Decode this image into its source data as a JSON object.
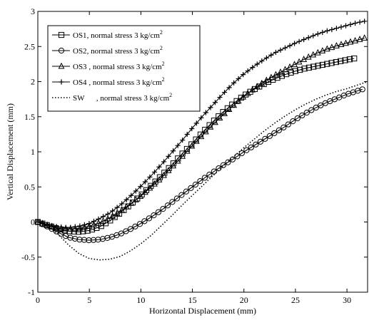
{
  "chart_data": {
    "type": "line",
    "title": "",
    "xlabel": "Horizontal Displacement (mm)",
    "ylabel": "Vertical Displacement (mm)",
    "xlim": [
      0,
      32
    ],
    "ylim": [
      -1,
      3
    ],
    "xticks": [
      0,
      5,
      10,
      15,
      20,
      25,
      30
    ],
    "yticks": [
      -1,
      -0.5,
      0,
      0.5,
      1,
      1.5,
      2,
      2.5,
      3
    ],
    "ytick_labels": [
      "-1",
      "-0.5",
      "0",
      "0.5",
      "1",
      "1.5",
      "2",
      "2.5",
      "3"
    ],
    "grid": false,
    "legend_position": "top-left",
    "series": [
      {
        "name": "OS1",
        "suffix": ", normal stress 3 kg/cm",
        "superscript": "2",
        "marker": "square",
        "line_style": "solid",
        "x": [
          0,
          1,
          2,
          3,
          4,
          5,
          6,
          7,
          8,
          9,
          10,
          11,
          12,
          13,
          14,
          15,
          16,
          17,
          18,
          19,
          20,
          21,
          22,
          23,
          24,
          25,
          26,
          27,
          28,
          29,
          30,
          30.7
        ],
        "y": [
          0,
          -0.05,
          -0.1,
          -0.13,
          -0.14,
          -0.12,
          -0.07,
          0.02,
          0.13,
          0.25,
          0.38,
          0.52,
          0.66,
          0.81,
          0.97,
          1.12,
          1.28,
          1.43,
          1.57,
          1.69,
          1.8,
          1.89,
          1.97,
          2.04,
          2.1,
          2.15,
          2.19,
          2.22,
          2.25,
          2.28,
          2.31,
          2.33
        ]
      },
      {
        "name": "OS2",
        "suffix": ", normal stress 3 kg/cm",
        "superscript": "2",
        "marker": "circle",
        "line_style": "solid",
        "x": [
          0,
          1,
          2,
          3,
          4,
          5,
          6,
          7,
          8,
          9,
          10,
          11,
          12,
          13,
          14,
          15,
          16,
          17,
          18,
          19,
          20,
          21,
          22,
          23,
          24,
          25,
          26,
          27,
          28,
          29,
          30,
          31.5
        ],
        "y": [
          0,
          -0.07,
          -0.15,
          -0.22,
          -0.25,
          -0.26,
          -0.25,
          -0.22,
          -0.17,
          -0.1,
          -0.02,
          0.07,
          0.17,
          0.28,
          0.39,
          0.5,
          0.61,
          0.71,
          0.81,
          0.9,
          1.0,
          1.09,
          1.18,
          1.27,
          1.36,
          1.46,
          1.55,
          1.63,
          1.7,
          1.76,
          1.82,
          1.89
        ]
      },
      {
        "name": "OS3",
        "suffix": " , normal stress 3 kg/cm",
        "superscript": "2",
        "marker": "triangle",
        "line_style": "solid",
        "x": [
          0,
          1,
          2,
          3,
          4,
          5,
          6,
          7,
          8,
          9,
          10,
          11,
          12,
          13,
          14,
          15,
          16,
          17,
          18,
          19,
          20,
          21,
          22,
          23,
          24,
          25,
          26,
          27,
          28,
          29,
          30,
          31,
          31.7
        ],
        "y": [
          0,
          -0.05,
          -0.09,
          -0.1,
          -0.09,
          -0.06,
          -0.01,
          0.06,
          0.15,
          0.26,
          0.37,
          0.5,
          0.63,
          0.78,
          0.93,
          1.09,
          1.24,
          1.39,
          1.53,
          1.66,
          1.79,
          1.9,
          2.0,
          2.09,
          2.17,
          2.25,
          2.33,
          2.4,
          2.46,
          2.51,
          2.55,
          2.59,
          2.62
        ]
      },
      {
        "name": "OS4",
        "suffix": " , normal stress 3 kg/cm",
        "superscript": "2",
        "marker": "plus",
        "line_style": "solid",
        "x": [
          0,
          1,
          2,
          3,
          4,
          5,
          6,
          7,
          8,
          9,
          10,
          11,
          12,
          13,
          14,
          15,
          16,
          17,
          18,
          19,
          20,
          21,
          22,
          23,
          24,
          25,
          26,
          27,
          28,
          29,
          30,
          31,
          31.7
        ],
        "y": [
          0,
          -0.04,
          -0.07,
          -0.08,
          -0.06,
          -0.02,
          0.05,
          0.13,
          0.24,
          0.37,
          0.51,
          0.66,
          0.82,
          0.99,
          1.16,
          1.34,
          1.51,
          1.67,
          1.83,
          1.98,
          2.11,
          2.22,
          2.32,
          2.41,
          2.48,
          2.55,
          2.61,
          2.67,
          2.72,
          2.76,
          2.8,
          2.84,
          2.86
        ]
      },
      {
        "name": "SW",
        "suffix": "      , normal stress 3 kg/cm",
        "superscript": "2",
        "marker": "none",
        "line_style": "dotted",
        "x": [
          0,
          1,
          2,
          3,
          4,
          5,
          6,
          7,
          8,
          9,
          10,
          11,
          12,
          13,
          14,
          15,
          16,
          17,
          18,
          19,
          20,
          21,
          22,
          23,
          24,
          25,
          26,
          27,
          28,
          29,
          30,
          31,
          32
        ],
        "y": [
          0,
          -0.06,
          -0.18,
          -0.33,
          -0.45,
          -0.52,
          -0.54,
          -0.53,
          -0.49,
          -0.41,
          -0.31,
          -0.19,
          -0.05,
          0.09,
          0.24,
          0.38,
          0.52,
          0.66,
          0.8,
          0.93,
          1.06,
          1.18,
          1.3,
          1.41,
          1.51,
          1.6,
          1.68,
          1.75,
          1.81,
          1.86,
          1.9,
          1.95,
          2.0
        ]
      }
    ]
  }
}
